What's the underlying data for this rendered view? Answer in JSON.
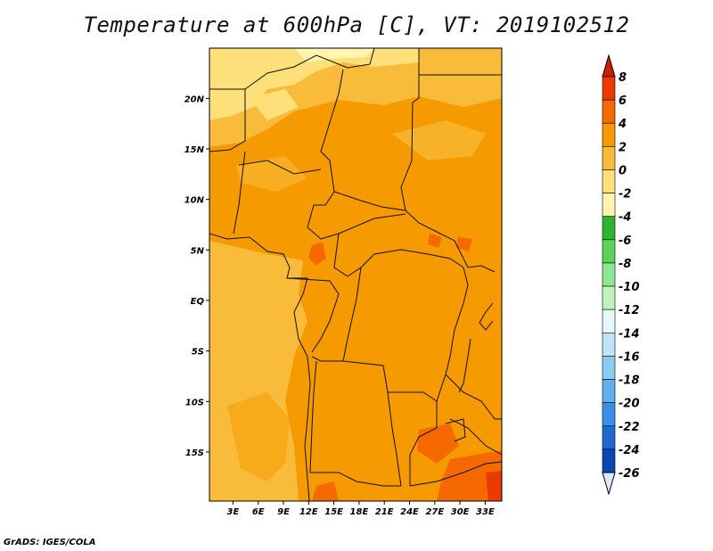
{
  "title": "Temperature at 600hPa [C], VT: 2019102512",
  "credit": "GrADS: IGES/COLA",
  "lat_ticks": [
    {
      "label": "20N",
      "lat": 20
    },
    {
      "label": "15N",
      "lat": 15
    },
    {
      "label": "10N",
      "lat": 10
    },
    {
      "label": "5N",
      "lat": 5
    },
    {
      "label": "EQ",
      "lat": 0
    },
    {
      "label": "5S",
      "lat": -5
    },
    {
      "label": "10S",
      "lat": -10
    },
    {
      "label": "15S",
      "lat": -15
    }
  ],
  "lon_ticks": [
    {
      "label": "3E",
      "lon": 3
    },
    {
      "label": "6E",
      "lon": 6
    },
    {
      "label": "9E",
      "lon": 9
    },
    {
      "label": "12E",
      "lon": 12
    },
    {
      "label": "15E",
      "lon": 15
    },
    {
      "label": "18E",
      "lon": 18
    },
    {
      "label": "21E",
      "lon": 21
    },
    {
      "label": "24E",
      "lon": 24
    },
    {
      "label": "27E",
      "lon": 27
    },
    {
      "label": "30E",
      "lon": 30
    },
    {
      "label": "33E",
      "lon": 33
    }
  ],
  "colorbar": {
    "levels": [
      "8",
      "6",
      "4",
      "2",
      "0",
      "-2",
      "-4",
      "-6",
      "-8",
      "-10",
      "-12",
      "-14",
      "-16",
      "-18",
      "-20",
      "-22",
      "-24",
      "-26"
    ],
    "colors": [
      "#cc1f00",
      "#ea3a00",
      "#f66800",
      "#f59a00",
      "#f8bc3a",
      "#fde07a",
      "#fff5b0",
      "#2fb42f",
      "#5cd25c",
      "#8ee68e",
      "#bff2bf",
      "#e6f7f7",
      "#bfe4f6",
      "#8ccaf1",
      "#5fb0ec",
      "#3a90e4",
      "#2068d0",
      "#0a46b4",
      "#002a8a",
      "#001060"
    ],
    "top_color": "#cc1f00",
    "bottom_color": "#dfe6fa"
  }
}
